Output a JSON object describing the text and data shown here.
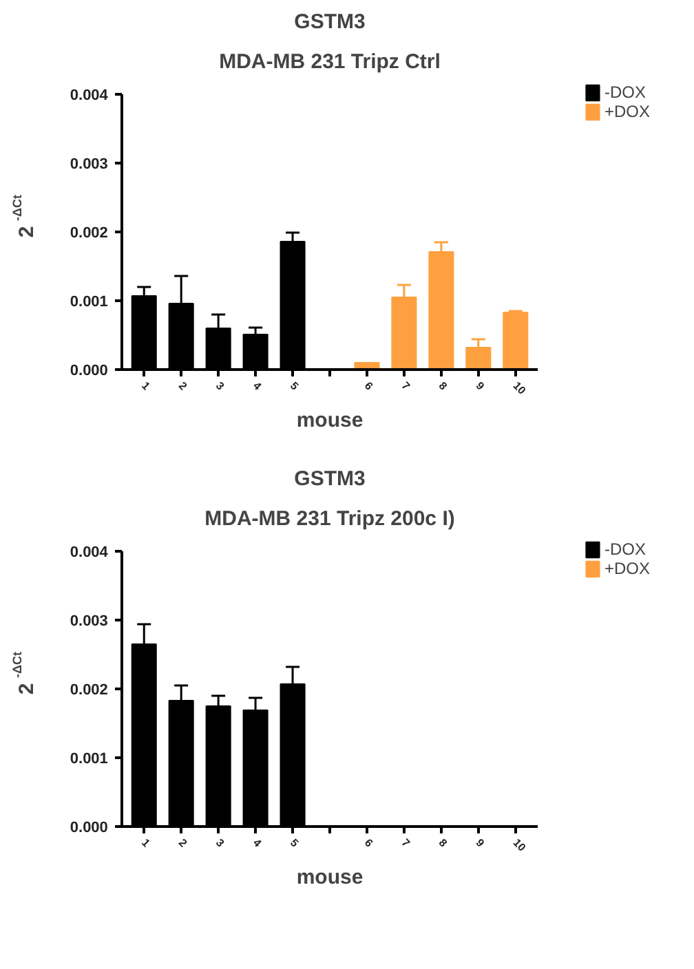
{
  "chart_data": [
    {
      "type": "bar",
      "title": "GSTM3",
      "subtitle": "MDA-MB 231 Tripz Ctrl",
      "xlabel": "mouse",
      "ylabel": "2$^{-ΔCt}$",
      "categories": [
        "1",
        "2",
        "3",
        "4",
        "5",
        null,
        "6",
        "7",
        "8",
        "9",
        "10"
      ],
      "series": [
        {
          "name": "-DOX",
          "color": "#000000",
          "values": [
            0.00107,
            0.00096,
            0.0006,
            0.00051,
            0.00186,
            null,
            null,
            null,
            null,
            null,
            null
          ],
          "errors": [
            0.00013,
            0.0004,
            0.0002,
            0.0001,
            0.00013,
            null,
            null,
            null,
            null,
            null,
            null
          ]
        },
        {
          "name": "+DOX",
          "color": "#ffa040",
          "values": [
            null,
            null,
            null,
            null,
            null,
            null,
            0.0001,
            0.00105,
            0.00171,
            0.00032,
            0.00083
          ],
          "errors": [
            null,
            null,
            null,
            null,
            null,
            null,
            null,
            0.00018,
            0.00014,
            0.00012,
            2e-05
          ]
        }
      ],
      "ylim": [
        0,
        0.004
      ],
      "yticks": [
        {
          "value": 0,
          "label": "0.000"
        },
        0.001,
        0.002,
        0.003,
        0.004
      ],
      "legend": "top right",
      "grid": false
    },
    {
      "type": "bar",
      "title": "GSTM3",
      "subtitle": "MDA-MB 231 Tripz 200c I)",
      "xlabel": "mouse",
      "ylabel": "2$^{-ΔCt}$",
      "categories": [
        "1",
        "2",
        "3",
        "4",
        "5",
        null,
        "6",
        "7",
        "8",
        "9",
        "10"
      ],
      "series": [
        {
          "name": "-DOX",
          "color": "#000000",
          "values": [
            0.00265,
            0.00183,
            0.00175,
            0.00169,
            0.00207,
            null,
            null,
            null,
            null,
            null,
            null
          ],
          "errors": [
            0.00029,
            0.00022,
            0.00015,
            0.00018,
            0.00025,
            null,
            null,
            null,
            null,
            null,
            null
          ]
        },
        {
          "name": "+DOX",
          "color": "#ffa040",
          "values": [
            null,
            null,
            null,
            null,
            null,
            null,
            null,
            null,
            null,
            null,
            null
          ]
        }
      ],
      "ylim": [
        0,
        0.004
      ],
      "yticks": [
        {
          "value": 0,
          "label": "0.000"
        },
        0.001,
        0.002,
        0.003,
        0.004
      ],
      "legend": "top right",
      "grid": false
    }
  ]
}
